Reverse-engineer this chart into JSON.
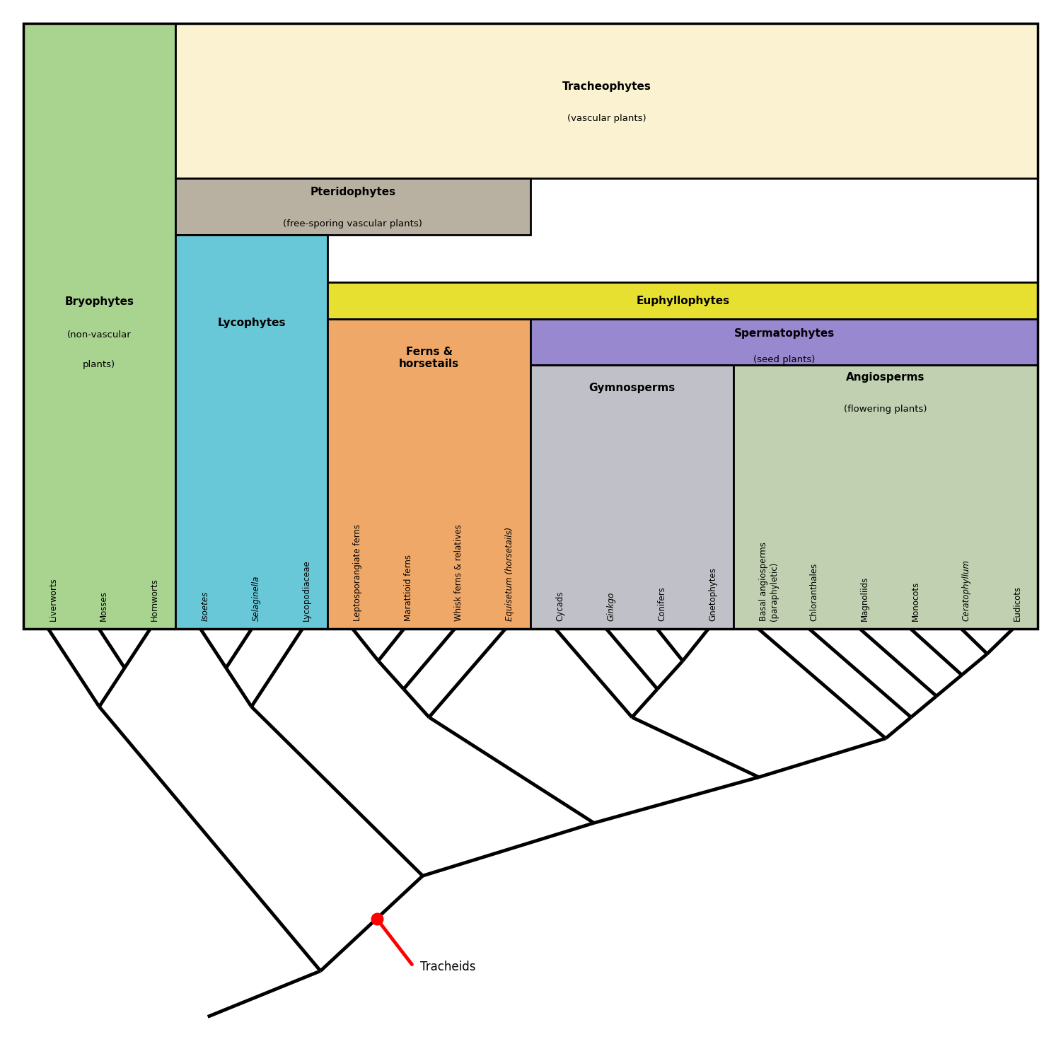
{
  "fig_width": 15.0,
  "fig_height": 15.0,
  "bg_color": "#ffffff",
  "colors": {
    "bryophytes": "#a8d490",
    "tracheophytes": "#faf2d0",
    "pteridophytes": "#b8b0a0",
    "lycophytes": "#68c8d8",
    "euphyllophytes": "#e8e030",
    "ferns_horsetails": "#f0a868",
    "spermatophytes": "#9888d0",
    "gymnosperms": "#c0c0c8",
    "angiosperms": "#c0d0b0"
  },
  "leaf_labels": [
    "Liverworts",
    "Mosses",
    "Hornworts",
    "Isoetes",
    "Selaginella",
    "Lycopodiaceae",
    "Leptosporangiate ferns",
    "Marattioid ferns",
    "Whisk ferns & relatives",
    "Equisetum (horsetails)",
    "Cycads",
    "Ginkgo",
    "Conifers",
    "Gnetophytes",
    "Basal angiosperms\n(paraphyletic)",
    "Chloranthales",
    "Magnoliids",
    "Monocots",
    "Ceratophyllum",
    "Eudicots"
  ],
  "leaf_italic": [
    false,
    false,
    false,
    true,
    true,
    false,
    false,
    false,
    false,
    true,
    false,
    true,
    false,
    false,
    false,
    false,
    false,
    false,
    true,
    false
  ],
  "tracheids_label": "Tracheids"
}
